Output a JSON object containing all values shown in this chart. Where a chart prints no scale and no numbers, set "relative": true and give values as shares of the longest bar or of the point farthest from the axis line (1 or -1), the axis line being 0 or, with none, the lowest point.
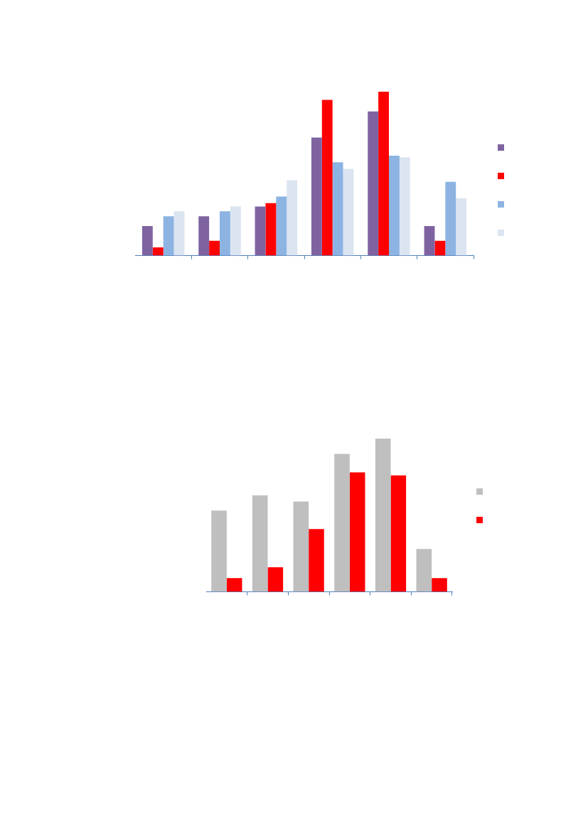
{
  "chart_data": [
    {
      "type": "bar",
      "relative": true,
      "categories": [
        null,
        null,
        null,
        null,
        null,
        null
      ],
      "series": [
        {
          "color": "#7f63a1",
          "values": [
            0.18,
            0.24,
            0.3,
            0.72,
            0.88,
            0.18
          ]
        },
        {
          "color": "#ff0000",
          "values": [
            0.05,
            0.09,
            0.32,
            0.95,
            1,
            0.09
          ]
        },
        {
          "color": "#8db3e2",
          "values": [
            0.24,
            0.27,
            0.36,
            0.57,
            0.61,
            0.45
          ]
        },
        {
          "color": "#dbe5f1",
          "values": [
            0.27,
            0.3,
            0.46,
            0.53,
            0.6,
            0.35
          ]
        }
      ]
    },
    {
      "type": "bar",
      "relative": true,
      "categories": [
        null,
        null,
        null,
        null,
        null,
        null
      ],
      "series": [
        {
          "color": "#bfbfbf",
          "values": [
            0.53,
            0.63,
            0.59,
            0.9,
            1,
            0.28
          ]
        },
        {
          "color": "#ff0000",
          "values": [
            0.09,
            0.16,
            0.41,
            0.78,
            0.76,
            0.09
          ]
        }
      ]
    }
  ]
}
